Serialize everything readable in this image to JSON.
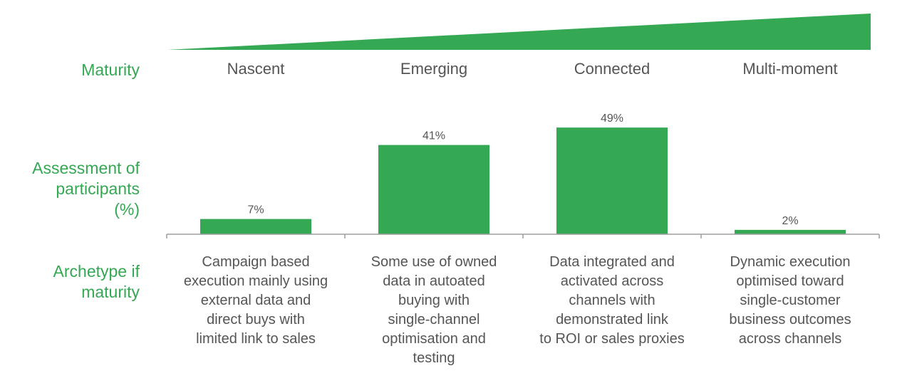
{
  "colors": {
    "accent": "#34a853",
    "text": "#555555",
    "axis": "#9e9e9e"
  },
  "row_labels": {
    "maturity": "Maturity",
    "assessment": [
      "Assessment of",
      "participants",
      "(%)"
    ],
    "archetype": [
      "Archetype if",
      "maturity"
    ]
  },
  "chart_data": {
    "type": "bar",
    "categories": [
      "Nascent",
      "Emerging",
      "Connected",
      "Multi-moment"
    ],
    "values": [
      7,
      41,
      49,
      2
    ],
    "value_labels": [
      "7%",
      "41%",
      "49%",
      "2%"
    ],
    "ylim": [
      0,
      52
    ],
    "grid": false,
    "archetypes": [
      [
        "Campaign based",
        "execution mainly using",
        "external data and",
        "direct buys with",
        "limited link to sales"
      ],
      [
        "Some use of owned",
        "data in autoated",
        "buying with",
        "single-channel",
        "optimisation and",
        "testing"
      ],
      [
        "Data integrated and",
        "activated across",
        "channels with",
        "demonstrated link",
        "to ROI or sales proxies"
      ],
      [
        "Dynamic execution",
        "optimised toward",
        "single-customer",
        "business outcomes",
        "across channels"
      ]
    ]
  }
}
